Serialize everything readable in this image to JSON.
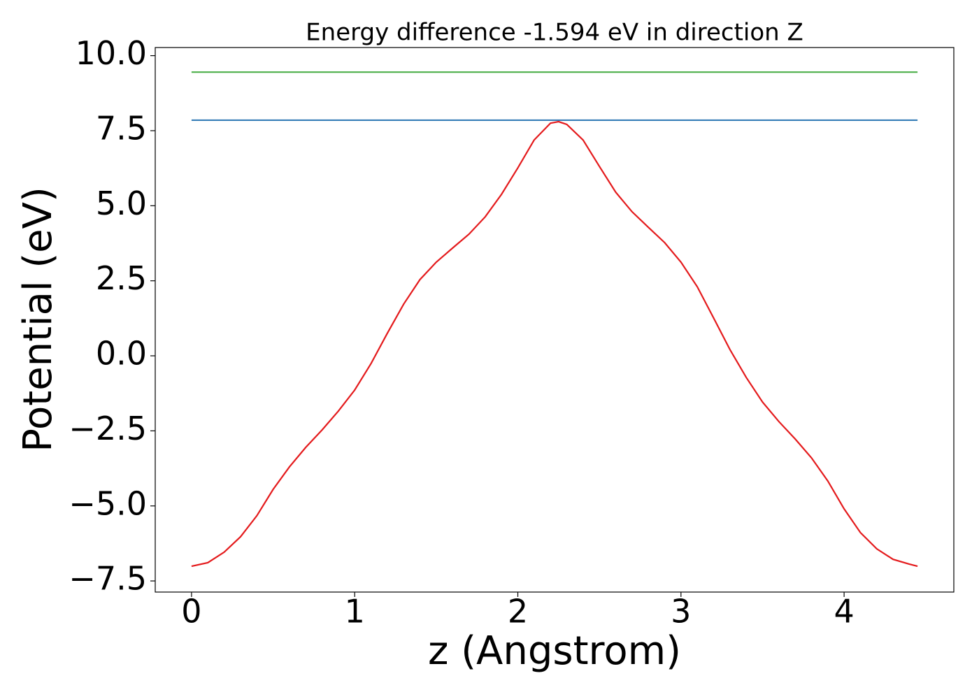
{
  "chart_data": {
    "type": "line",
    "title": "Energy difference -1.594 eV in direction Z",
    "xlabel": "z (Angstrom)",
    "ylabel": "Potential (eV)",
    "xlim": [
      -0.2225,
      4.6725
    ],
    "ylim": [
      -7.87,
      10.27
    ],
    "xticks": [
      0,
      1,
      2,
      3,
      4
    ],
    "yticks": [
      {
        "value": -7.5,
        "label": "−7.5"
      },
      {
        "value": -5.0,
        "label": "−5.0"
      },
      {
        "value": -2.5,
        "label": "−2.5"
      },
      {
        "value": 0.0,
        "label": "0.0"
      },
      2.5,
      {
        "value": 5.0,
        "label": "5.0"
      },
      7.5,
      {
        "value": 10.0,
        "label": "10.0"
      }
    ],
    "grid": false,
    "series": [
      {
        "color": "#e41a1c",
        "x": [
          0,
          0.1,
          0.2,
          0.3,
          0.4,
          0.5,
          0.6,
          0.7,
          0.8,
          0.9,
          1.0,
          1.1,
          1.2,
          1.3,
          1.4,
          1.5,
          1.6,
          1.7,
          1.8,
          1.9,
          2.0,
          2.1,
          2.2,
          2.25,
          2.3,
          2.4,
          2.5,
          2.6,
          2.7,
          2.8,
          2.9,
          3.0,
          3.1,
          3.2,
          3.3,
          3.4,
          3.5,
          3.6,
          3.7,
          3.8,
          3.9,
          4.0,
          4.1,
          4.2,
          4.3,
          4.4,
          4.45
        ],
        "values": [
          -7.01,
          -6.89,
          -6.54,
          -6.03,
          -5.33,
          -4.45,
          -3.7,
          -3.05,
          -2.47,
          -1.84,
          -1.14,
          -0.26,
          0.75,
          1.72,
          2.54,
          3.12,
          3.59,
          4.05,
          4.63,
          5.38,
          6.26,
          7.19,
          7.75,
          7.8,
          7.71,
          7.19,
          6.31,
          5.45,
          4.8,
          4.28,
          3.77,
          3.12,
          2.3,
          1.26,
          0.21,
          -0.72,
          -1.54,
          -2.19,
          -2.77,
          -3.4,
          -4.17,
          -5.1,
          -5.89,
          -6.43,
          -6.78,
          -6.94,
          -7.01
        ]
      },
      {
        "color": "#377eb8",
        "x": [
          0,
          4.45
        ],
        "values": [
          7.85,
          7.85
        ]
      },
      {
        "color": "#4daf4a",
        "x": [
          0,
          4.45
        ],
        "values": [
          9.45,
          9.45
        ]
      }
    ]
  }
}
